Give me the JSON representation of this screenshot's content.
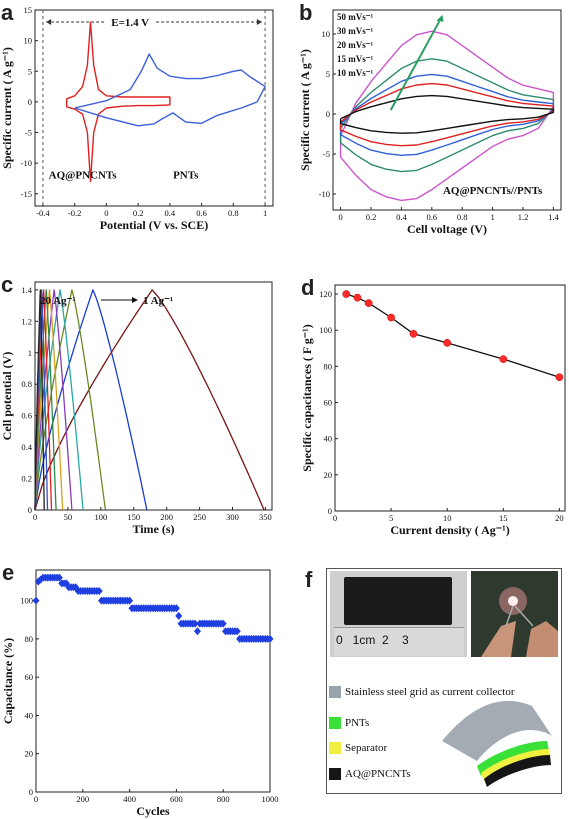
{
  "panels": {
    "a": {
      "label": "a",
      "ylabel": "Specific current ( A g⁻¹)",
      "xlabel": "Potential (V vs. SCE)",
      "window_label": "E=1.4 V",
      "ann_left": "AQ@PNCNTs",
      "ann_right": "PNTs"
    },
    "b": {
      "label": "b",
      "ylabel": "Specific current ( A g⁻¹)",
      "xlabel": "Cell voltage (V)",
      "ann": "AQ@PNCNTs//PNTs",
      "rates": [
        "50 mVs⁻¹",
        "30 mVs⁻¹",
        "20 mVs⁻¹",
        "15 mVs⁻¹",
        "10 mVs⁻¹"
      ]
    },
    "c": {
      "label": "c",
      "ylabel": "Cell potential (V)",
      "xlabel": "Time (s)",
      "ann_from": "20 Ag⁻¹",
      "ann_to": "1 Ag⁻¹"
    },
    "d": {
      "label": "d",
      "ylabel": "Specific capacitances ( F g⁻¹)",
      "xlabel": "Current density ( Ag⁻¹)"
    },
    "e": {
      "label": "e",
      "ylabel": "Capacitance (%)",
      "xlabel": "Cycles"
    },
    "f": {
      "label": "f",
      "ruler_text": "0   1cm  2    3",
      "legend": [
        {
          "text": "Stainless steel grid as current collector",
          "color": "#9aa2aa"
        },
        {
          "text": "PNTs",
          "color": "#38e038"
        },
        {
          "text": "Separator",
          "color": "#f0f040"
        },
        {
          "text": "AQ@PNCNTs",
          "color": "#161616"
        }
      ]
    }
  },
  "chart_data": [
    {
      "panel": "a",
      "type": "line",
      "xlim": [
        -0.45,
        1.05
      ],
      "ylim": [
        -17,
        15
      ],
      "xticks": [
        -0.4,
        -0.2,
        0.0,
        0.2,
        0.4,
        0.6,
        0.8,
        1.0
      ],
      "yticks": [
        -15,
        -10,
        -5,
        0,
        5,
        10,
        15
      ],
      "series": [
        {
          "color": "#e02020",
          "x": [
            -0.25,
            -0.2,
            -0.15,
            -0.12,
            -0.1,
            -0.08,
            -0.05,
            0.0,
            0.1,
            0.2,
            0.3,
            0.4,
            0.4,
            0.3,
            0.2,
            0.1,
            0.0,
            -0.05,
            -0.08,
            -0.1,
            -0.12,
            -0.15,
            -0.2,
            -0.25,
            -0.25
          ],
          "y": [
            0.5,
            1.0,
            2.5,
            6.0,
            13.0,
            6.0,
            2.0,
            1.0,
            0.8,
            0.8,
            0.8,
            0.8,
            -0.5,
            -0.6,
            -0.6,
            -0.7,
            -1.0,
            -2.0,
            -5.0,
            -13.0,
            -5.0,
            -2.0,
            -1.2,
            -0.8,
            0.5
          ]
        },
        {
          "color": "#3a5fd9",
          "x": [
            -0.2,
            0.0,
            0.15,
            0.22,
            0.27,
            0.32,
            0.4,
            0.5,
            0.6,
            0.7,
            0.8,
            0.85,
            0.9,
            1.0,
            0.95,
            0.85,
            0.7,
            0.6,
            0.5,
            0.42,
            0.35,
            0.3,
            0.2,
            0.0,
            -0.2
          ],
          "y": [
            -1.0,
            0.2,
            2.0,
            5.0,
            7.8,
            5.5,
            4.2,
            3.8,
            3.8,
            4.3,
            5.0,
            5.2,
            4.2,
            2.5,
            0.0,
            -1.0,
            -2.2,
            -3.5,
            -3.3,
            -1.8,
            -2.8,
            -3.6,
            -3.9,
            -2.6,
            -1.0
          ]
        }
      ]
    },
    {
      "panel": "b",
      "type": "line",
      "xlim": [
        -0.05,
        1.45
      ],
      "ylim": [
        -12,
        13
      ],
      "xticks": [
        0.0,
        0.2,
        0.4,
        0.6,
        0.8,
        1.0,
        1.2,
        1.4
      ],
      "yticks": [
        -10,
        -5,
        0,
        5,
        10
      ],
      "series": [
        {
          "name": "50 mVs⁻¹",
          "color": "#cc55cc",
          "scale": 4.5
        },
        {
          "name": "30 mVs⁻¹",
          "color": "#2e8b72",
          "scale": 3.0
        },
        {
          "name": "20 mVs⁻¹",
          "color": "#3060d8",
          "scale": 2.15
        },
        {
          "name": "15 mVs⁻¹",
          "color": "#e02020",
          "scale": 1.65
        },
        {
          "name": "10 mVs⁻¹",
          "color": "#111111",
          "scale": 1.0
        }
      ],
      "base_x": [
        0.0,
        0.1,
        0.2,
        0.3,
        0.4,
        0.5,
        0.6,
        0.7,
        0.8,
        0.9,
        1.0,
        1.1,
        1.2,
        1.3,
        1.4,
        1.4,
        1.3,
        1.2,
        1.1,
        1.0,
        0.9,
        0.8,
        0.7,
        0.6,
        0.5,
        0.4,
        0.3,
        0.2,
        0.1,
        0.0,
        0.0
      ],
      "base_y": [
        -0.6,
        0.3,
        0.9,
        1.4,
        1.9,
        2.2,
        2.3,
        2.2,
        1.9,
        1.6,
        1.3,
        1.0,
        0.8,
        0.7,
        0.6,
        0.2,
        -0.4,
        -0.6,
        -0.7,
        -0.9,
        -1.2,
        -1.5,
        -1.8,
        -2.1,
        -2.35,
        -2.4,
        -2.3,
        -2.1,
        -1.7,
        -1.2,
        -0.6
      ]
    },
    {
      "panel": "c",
      "type": "line",
      "xlim": [
        0,
        360
      ],
      "ylim": [
        0,
        1.45
      ],
      "xticks": [
        0,
        50,
        100,
        150,
        200,
        250,
        300,
        350
      ],
      "yticks": [
        0.0,
        0.2,
        0.4,
        0.6,
        0.8,
        1.0,
        1.2,
        1.4
      ],
      "series": [
        {
          "color": "#7a1414",
          "peak": 178,
          "end": 348
        },
        {
          "color": "#1a3bd0",
          "peak": 88,
          "end": 170
        },
        {
          "color": "#6a8a22",
          "peak": 56,
          "end": 107
        },
        {
          "color": "#2aa6a6",
          "peak": 38,
          "end": 73
        },
        {
          "color": "#8a3ab9",
          "peak": 29,
          "end": 56
        },
        {
          "color": "#d6a020",
          "peak": 22,
          "end": 42
        },
        {
          "color": "#2e8a4a",
          "peak": 17,
          "end": 32
        },
        {
          "color": "#e02020",
          "peak": 13,
          "end": 25
        },
        {
          "color": "#3050c8",
          "peak": 10,
          "end": 19
        },
        {
          "color": "#222222",
          "peak": 8,
          "end": 14
        }
      ]
    },
    {
      "panel": "d",
      "type": "line",
      "xlim": [
        0,
        20.5
      ],
      "ylim": [
        0,
        125
      ],
      "xticks": [
        0,
        5,
        10,
        15,
        20
      ],
      "yticks": [
        0,
        20,
        40,
        60,
        80,
        100,
        120
      ],
      "x": [
        1,
        2,
        3,
        5,
        7,
        10,
        15,
        20
      ],
      "y": [
        120,
        118,
        115,
        107,
        98,
        93,
        84,
        74
      ],
      "marker_color": "#ff2a2a"
    },
    {
      "panel": "e",
      "type": "scatter",
      "xlim": [
        0,
        1000
      ],
      "ylim": [
        0,
        116
      ],
      "xticks": [
        0,
        200,
        400,
        600,
        800,
        1000
      ],
      "yticks": [
        0,
        20,
        40,
        60,
        80,
        100
      ],
      "marker_color": "#1f3fe0",
      "x": [
        0,
        10,
        20,
        30,
        40,
        50,
        60,
        70,
        80,
        90,
        100,
        110,
        120,
        130,
        140,
        150,
        160,
        170,
        180,
        190,
        200,
        210,
        220,
        230,
        240,
        250,
        260,
        270,
        280,
        290,
        300,
        310,
        320,
        330,
        340,
        350,
        360,
        370,
        380,
        390,
        400,
        410,
        420,
        430,
        440,
        450,
        460,
        470,
        480,
        490,
        500,
        510,
        520,
        530,
        540,
        550,
        560,
        570,
        580,
        590,
        600,
        610,
        620,
        630,
        640,
        650,
        660,
        670,
        680,
        690,
        700,
        710,
        720,
        730,
        740,
        750,
        760,
        770,
        780,
        790,
        800,
        810,
        820,
        830,
        840,
        850,
        860,
        870,
        880,
        890,
        900,
        910,
        920,
        930,
        940,
        950,
        960,
        970,
        980,
        990,
        1000
      ],
      "y": [
        100,
        110,
        111,
        112,
        112,
        112,
        112,
        112,
        112,
        112,
        112,
        109,
        109,
        109,
        107,
        107,
        107,
        107,
        105,
        105,
        105,
        105,
        105,
        105,
        105,
        105,
        105,
        105,
        100,
        100,
        100,
        100,
        100,
        100,
        100,
        100,
        100,
        100,
        100,
        100,
        100,
        96,
        96,
        96,
        96,
        96,
        96,
        96,
        96,
        96,
        96,
        96,
        96,
        96,
        96,
        96,
        96,
        96,
        96,
        96,
        96,
        92,
        88,
        88,
        88,
        88,
        88,
        88,
        88,
        84,
        88,
        88,
        88,
        88,
        88,
        88,
        88,
        88,
        88,
        88,
        88,
        84,
        84,
        84,
        84,
        84,
        84,
        80,
        80,
        80,
        80,
        80,
        80,
        80,
        80,
        80,
        80,
        80,
        80,
        80,
        80
      ]
    }
  ]
}
